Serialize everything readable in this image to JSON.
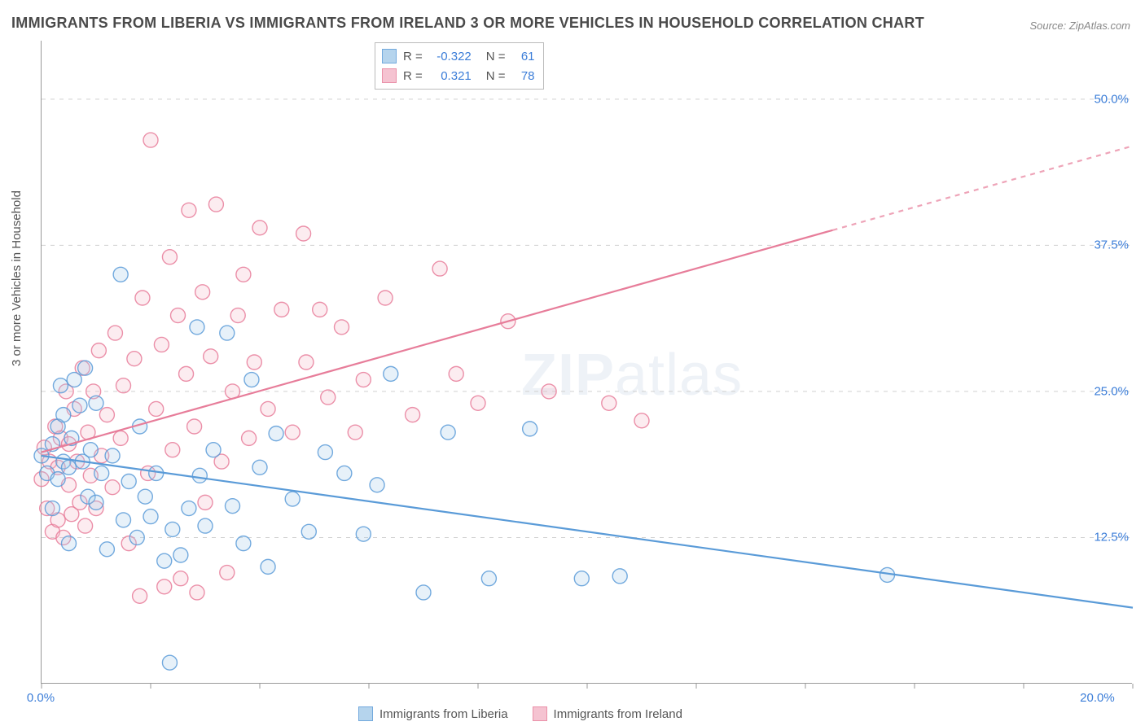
{
  "title": "IMMIGRANTS FROM LIBERIA VS IMMIGRANTS FROM IRELAND 3 OR MORE VEHICLES IN HOUSEHOLD CORRELATION CHART",
  "source": "Source: ZipAtlas.com",
  "ylabel": "3 or more Vehicles in Household",
  "watermark_bold": "ZIP",
  "watermark_rest": "atlas",
  "chart": {
    "type": "scatter",
    "xlim": [
      0,
      20
    ],
    "ylim": [
      0,
      55
    ],
    "x_ticks_minor": [
      0,
      2,
      4,
      6,
      8,
      10,
      12,
      14,
      16,
      18,
      20
    ],
    "x_tick_labels": [
      {
        "x": 0,
        "label": "0.0%"
      },
      {
        "x": 20,
        "label": "20.0%"
      }
    ],
    "y_gridlines": [
      12.5,
      25.0,
      37.5,
      50.0
    ],
    "y_tick_labels": [
      {
        "y": 12.5,
        "label": "12.5%"
      },
      {
        "y": 25.0,
        "label": "25.0%"
      },
      {
        "y": 37.5,
        "label": "37.5%"
      },
      {
        "y": 50.0,
        "label": "50.0%"
      }
    ],
    "grid_color": "#d0d0d0",
    "background_color": "#ffffff",
    "marker_radius": 9,
    "marker_fill_opacity": 0.28,
    "marker_stroke_width": 1.4,
    "trend_line_width": 2.2
  },
  "series": {
    "liberia": {
      "label": "Immigrants from Liberia",
      "color_stroke": "#5a9bd8",
      "color_fill": "#a9cdea",
      "R": "-0.322",
      "N": "61",
      "trend": {
        "x1": 0,
        "y1": 19.5,
        "x2": 20,
        "y2": 6.5,
        "dash_from_x": null
      },
      "points": [
        [
          0.0,
          19.5
        ],
        [
          0.1,
          18.0
        ],
        [
          0.2,
          20.5
        ],
        [
          0.2,
          15.0
        ],
        [
          0.3,
          22.0
        ],
        [
          0.3,
          17.5
        ],
        [
          0.35,
          25.5
        ],
        [
          0.4,
          19.0
        ],
        [
          0.4,
          23.0
        ],
        [
          0.5,
          18.5
        ],
        [
          0.5,
          12.0
        ],
        [
          0.55,
          21.0
        ],
        [
          0.6,
          26.0
        ],
        [
          0.7,
          23.8
        ],
        [
          0.75,
          19.0
        ],
        [
          0.8,
          27.0
        ],
        [
          0.85,
          16.0
        ],
        [
          0.9,
          20.0
        ],
        [
          1.0,
          15.5
        ],
        [
          1.0,
          24.0
        ],
        [
          1.1,
          18.0
        ],
        [
          1.2,
          11.5
        ],
        [
          1.3,
          19.5
        ],
        [
          1.45,
          35.0
        ],
        [
          1.5,
          14.0
        ],
        [
          1.6,
          17.3
        ],
        [
          1.75,
          12.5
        ],
        [
          1.8,
          22.0
        ],
        [
          1.9,
          16.0
        ],
        [
          2.0,
          14.3
        ],
        [
          2.1,
          18.0
        ],
        [
          2.25,
          10.5
        ],
        [
          2.35,
          1.8
        ],
        [
          2.4,
          13.2
        ],
        [
          2.55,
          11.0
        ],
        [
          2.7,
          15.0
        ],
        [
          2.85,
          30.5
        ],
        [
          2.9,
          17.8
        ],
        [
          3.0,
          13.5
        ],
        [
          3.15,
          20.0
        ],
        [
          3.4,
          30.0
        ],
        [
          3.5,
          15.2
        ],
        [
          3.7,
          12.0
        ],
        [
          3.85,
          26.0
        ],
        [
          4.0,
          18.5
        ],
        [
          4.15,
          10.0
        ],
        [
          4.3,
          21.4
        ],
        [
          4.6,
          15.8
        ],
        [
          4.9,
          13.0
        ],
        [
          5.2,
          19.8
        ],
        [
          5.55,
          18.0
        ],
        [
          5.9,
          12.8
        ],
        [
          6.15,
          17.0
        ],
        [
          6.4,
          26.5
        ],
        [
          7.0,
          7.8
        ],
        [
          7.45,
          21.5
        ],
        [
          8.2,
          9.0
        ],
        [
          8.95,
          21.8
        ],
        [
          9.9,
          9.0
        ],
        [
          10.6,
          9.2
        ],
        [
          15.5,
          9.3
        ]
      ]
    },
    "ireland": {
      "label": "Immigrants from Ireland",
      "color_stroke": "#e77d9a",
      "color_fill": "#f4b9c9",
      "R": "0.321",
      "N": "78",
      "trend": {
        "x1": 0,
        "y1": 19.8,
        "x2": 20,
        "y2": 46.0,
        "dash_from_x": 14.5
      },
      "points": [
        [
          0.0,
          17.5
        ],
        [
          0.05,
          20.2
        ],
        [
          0.1,
          15.0
        ],
        [
          0.15,
          19.0
        ],
        [
          0.2,
          13.0
        ],
        [
          0.25,
          22.0
        ],
        [
          0.3,
          18.5
        ],
        [
          0.3,
          14.0
        ],
        [
          0.35,
          21.0
        ],
        [
          0.4,
          12.5
        ],
        [
          0.45,
          25.0
        ],
        [
          0.5,
          17.0
        ],
        [
          0.5,
          20.5
        ],
        [
          0.55,
          14.5
        ],
        [
          0.6,
          23.5
        ],
        [
          0.65,
          19.0
        ],
        [
          0.7,
          15.5
        ],
        [
          0.75,
          27.0
        ],
        [
          0.8,
          13.5
        ],
        [
          0.85,
          21.5
        ],
        [
          0.9,
          17.8
        ],
        [
          0.95,
          25.0
        ],
        [
          1.0,
          15.0
        ],
        [
          1.05,
          28.5
        ],
        [
          1.1,
          19.5
        ],
        [
          1.2,
          23.0
        ],
        [
          1.3,
          16.8
        ],
        [
          1.35,
          30.0
        ],
        [
          1.45,
          21.0
        ],
        [
          1.5,
          25.5
        ],
        [
          1.6,
          12.0
        ],
        [
          1.7,
          27.8
        ],
        [
          1.8,
          7.5
        ],
        [
          1.85,
          33.0
        ],
        [
          1.95,
          18.0
        ],
        [
          2.0,
          46.5
        ],
        [
          2.1,
          23.5
        ],
        [
          2.2,
          29.0
        ],
        [
          2.25,
          8.3
        ],
        [
          2.35,
          36.5
        ],
        [
          2.4,
          20.0
        ],
        [
          2.5,
          31.5
        ],
        [
          2.55,
          9.0
        ],
        [
          2.65,
          26.5
        ],
        [
          2.7,
          40.5
        ],
        [
          2.8,
          22.0
        ],
        [
          2.85,
          7.8
        ],
        [
          2.95,
          33.5
        ],
        [
          3.0,
          15.5
        ],
        [
          3.1,
          28.0
        ],
        [
          3.2,
          41.0
        ],
        [
          3.3,
          19.0
        ],
        [
          3.4,
          9.5
        ],
        [
          3.5,
          25.0
        ],
        [
          3.6,
          31.5
        ],
        [
          3.7,
          35.0
        ],
        [
          3.8,
          21.0
        ],
        [
          3.9,
          27.5
        ],
        [
          4.0,
          39.0
        ],
        [
          4.15,
          23.5
        ],
        [
          4.4,
          32.0
        ],
        [
          4.6,
          21.5
        ],
        [
          4.8,
          38.5
        ],
        [
          4.85,
          27.5
        ],
        [
          5.1,
          32.0
        ],
        [
          5.25,
          24.5
        ],
        [
          5.5,
          30.5
        ],
        [
          5.75,
          21.5
        ],
        [
          5.9,
          26.0
        ],
        [
          6.3,
          33.0
        ],
        [
          6.8,
          23.0
        ],
        [
          7.3,
          35.5
        ],
        [
          7.6,
          26.5
        ],
        [
          8.0,
          24.0
        ],
        [
          8.55,
          31.0
        ],
        [
          9.3,
          25.0
        ],
        [
          10.4,
          24.0
        ],
        [
          11.0,
          22.5
        ]
      ]
    }
  },
  "legend_labels": {
    "R_prefix": "R =",
    "N_prefix": "N ="
  }
}
